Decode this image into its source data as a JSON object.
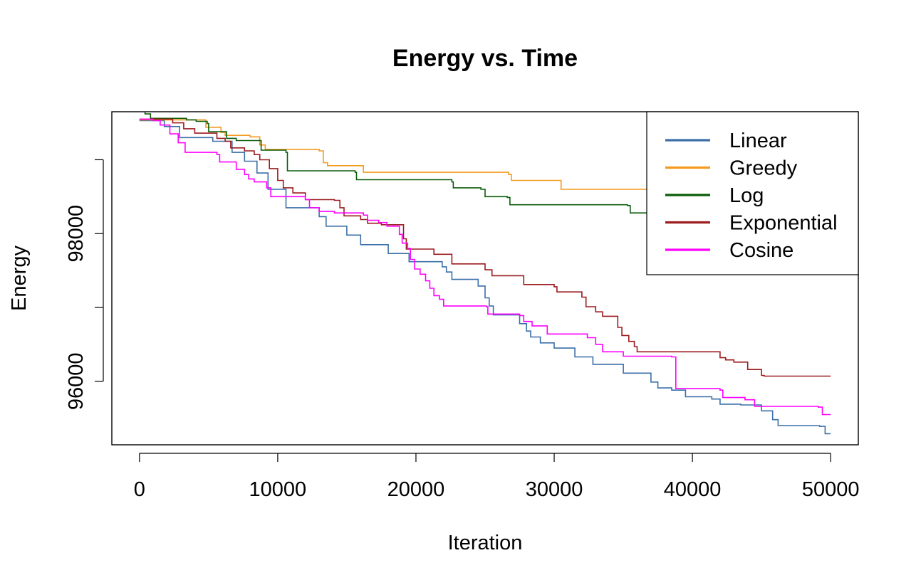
{
  "chart_data": {
    "type": "line",
    "step": true,
    "title": "Energy vs. Time",
    "xlabel": "Iteration",
    "ylabel": "Energy",
    "xlim": [
      -2000,
      52000
    ],
    "ylim": [
      95140,
      99650
    ],
    "xticks": [
      0,
      10000,
      20000,
      30000,
      40000,
      50000
    ],
    "xtick_labels": [
      "0",
      "10000",
      "20000",
      "30000",
      "40000",
      "50000"
    ],
    "yticks": [
      96000,
      97000,
      98000,
      99000
    ],
    "ytick_labels": [
      "96000",
      "",
      "98000",
      ""
    ],
    "grid": false,
    "legend_position": "top-right",
    "series": [
      {
        "name": "Linear",
        "color": "#3A6FA8",
        "points": [
          [
            0,
            99530
          ],
          [
            1800,
            99450
          ],
          [
            2900,
            99300
          ],
          [
            5300,
            99250
          ],
          [
            6700,
            99100
          ],
          [
            7600,
            98980
          ],
          [
            8500,
            98820
          ],
          [
            9300,
            98600
          ],
          [
            10600,
            98350
          ],
          [
            13000,
            98230
          ],
          [
            13500,
            98100
          ],
          [
            15000,
            97980
          ],
          [
            16000,
            97850
          ],
          [
            18000,
            97730
          ],
          [
            19500,
            97620
          ],
          [
            21900,
            97550
          ],
          [
            22200,
            97480
          ],
          [
            22600,
            97380
          ],
          [
            24500,
            97290
          ],
          [
            25000,
            97130
          ],
          [
            25300,
            97020
          ],
          [
            25600,
            96900
          ],
          [
            27500,
            96780
          ],
          [
            28000,
            96680
          ],
          [
            28300,
            96600
          ],
          [
            29000,
            96520
          ],
          [
            30000,
            96450
          ],
          [
            31500,
            96330
          ],
          [
            32800,
            96230
          ],
          [
            35000,
            96110
          ],
          [
            37000,
            95990
          ],
          [
            37500,
            95910
          ],
          [
            38500,
            95880
          ],
          [
            39500,
            95790
          ],
          [
            41400,
            95760
          ],
          [
            42000,
            95690
          ],
          [
            43500,
            95680
          ],
          [
            45000,
            95600
          ],
          [
            45800,
            95480
          ],
          [
            46200,
            95400
          ],
          [
            49200,
            95390
          ],
          [
            49600,
            95290
          ],
          [
            50000,
            95290
          ]
        ]
      },
      {
        "name": "Greedy",
        "color": "#F49A1E",
        "points": [
          [
            0,
            99540
          ],
          [
            4800,
            99440
          ],
          [
            5900,
            99370
          ],
          [
            6200,
            99330
          ],
          [
            8000,
            99310
          ],
          [
            8700,
            99200
          ],
          [
            9100,
            99140
          ],
          [
            13000,
            99120
          ],
          [
            13300,
            98960
          ],
          [
            13600,
            98920
          ],
          [
            16200,
            98830
          ],
          [
            26700,
            98800
          ],
          [
            26900,
            98720
          ],
          [
            30500,
            98600
          ],
          [
            40000,
            98590
          ],
          [
            50000,
            98580
          ]
        ]
      },
      {
        "name": "Log",
        "color": "#0B5C0B",
        "points": [
          [
            0,
            99700
          ],
          [
            400,
            99620
          ],
          [
            600,
            99620
          ],
          [
            800,
            99560
          ],
          [
            3400,
            99540
          ],
          [
            4100,
            99520
          ],
          [
            4900,
            99490
          ],
          [
            5000,
            99380
          ],
          [
            6300,
            99290
          ],
          [
            7000,
            99260
          ],
          [
            8800,
            99130
          ],
          [
            10600,
            99100
          ],
          [
            10700,
            98850
          ],
          [
            15600,
            98830
          ],
          [
            15700,
            98730
          ],
          [
            22600,
            98700
          ],
          [
            22700,
            98620
          ],
          [
            24700,
            98600
          ],
          [
            25000,
            98500
          ],
          [
            26600,
            98490
          ],
          [
            26800,
            98390
          ],
          [
            35300,
            98380
          ],
          [
            35500,
            98280
          ],
          [
            40000,
            98270
          ],
          [
            50000,
            98260
          ]
        ]
      },
      {
        "name": "Exponential",
        "color": "#9B1B1E",
        "points": [
          [
            0,
            99550
          ],
          [
            2400,
            99500
          ],
          [
            3200,
            99420
          ],
          [
            4000,
            99360
          ],
          [
            5600,
            99290
          ],
          [
            6200,
            99250
          ],
          [
            6600,
            99160
          ],
          [
            7600,
            99120
          ],
          [
            8300,
            99070
          ],
          [
            8700,
            99000
          ],
          [
            9400,
            98880
          ],
          [
            10000,
            98720
          ],
          [
            10400,
            98620
          ],
          [
            11100,
            98550
          ],
          [
            12000,
            98460
          ],
          [
            14100,
            98450
          ],
          [
            14500,
            98350
          ],
          [
            14800,
            98240
          ],
          [
            16000,
            98190
          ],
          [
            16500,
            98140
          ],
          [
            17500,
            98120
          ],
          [
            19100,
            97930
          ],
          [
            19300,
            97790
          ],
          [
            21300,
            97720
          ],
          [
            22600,
            97590
          ],
          [
            25000,
            97510
          ],
          [
            25500,
            97430
          ],
          [
            27800,
            97310
          ],
          [
            30000,
            97280
          ],
          [
            30200,
            97210
          ],
          [
            32000,
            97140
          ],
          [
            32300,
            97010
          ],
          [
            33000,
            96940
          ],
          [
            33500,
            96880
          ],
          [
            34600,
            96730
          ],
          [
            34900,
            96620
          ],
          [
            35400,
            96540
          ],
          [
            35800,
            96470
          ],
          [
            36000,
            96400
          ],
          [
            42000,
            96320
          ],
          [
            42400,
            96290
          ],
          [
            43000,
            96260
          ],
          [
            44000,
            96160
          ],
          [
            45000,
            96080
          ],
          [
            45200,
            96070
          ],
          [
            50000,
            96070
          ]
        ]
      },
      {
        "name": "Cosine",
        "color": "#FF00FF",
        "points": [
          [
            0,
            99550
          ],
          [
            1000,
            99530
          ],
          [
            1500,
            99470
          ],
          [
            2200,
            99350
          ],
          [
            2800,
            99230
          ],
          [
            3300,
            99100
          ],
          [
            5600,
            99070
          ],
          [
            5800,
            98970
          ],
          [
            7000,
            98870
          ],
          [
            7600,
            98800
          ],
          [
            7900,
            98740
          ],
          [
            8300,
            98700
          ],
          [
            9200,
            98620
          ],
          [
            9500,
            98500
          ],
          [
            12000,
            98460
          ],
          [
            12300,
            98350
          ],
          [
            13000,
            98300
          ],
          [
            14100,
            98280
          ],
          [
            16200,
            98250
          ],
          [
            16500,
            98180
          ],
          [
            17300,
            98150
          ],
          [
            17900,
            98100
          ],
          [
            18800,
            97990
          ],
          [
            19000,
            97870
          ],
          [
            19400,
            97800
          ],
          [
            19600,
            97650
          ],
          [
            19900,
            97520
          ],
          [
            20300,
            97450
          ],
          [
            20700,
            97360
          ],
          [
            21000,
            97260
          ],
          [
            21300,
            97160
          ],
          [
            21700,
            97110
          ],
          [
            22000,
            97020
          ],
          [
            25100,
            97010
          ],
          [
            25200,
            96910
          ],
          [
            27500,
            96890
          ],
          [
            27800,
            96810
          ],
          [
            28400,
            96750
          ],
          [
            29500,
            96640
          ],
          [
            32400,
            96590
          ],
          [
            33000,
            96500
          ],
          [
            33500,
            96400
          ],
          [
            35000,
            96340
          ],
          [
            38500,
            96330
          ],
          [
            38800,
            95900
          ],
          [
            42000,
            95880
          ],
          [
            42200,
            95780
          ],
          [
            43800,
            95750
          ],
          [
            44500,
            95660
          ],
          [
            49100,
            95650
          ],
          [
            49400,
            95550
          ],
          [
            50000,
            95550
          ]
        ]
      }
    ]
  }
}
